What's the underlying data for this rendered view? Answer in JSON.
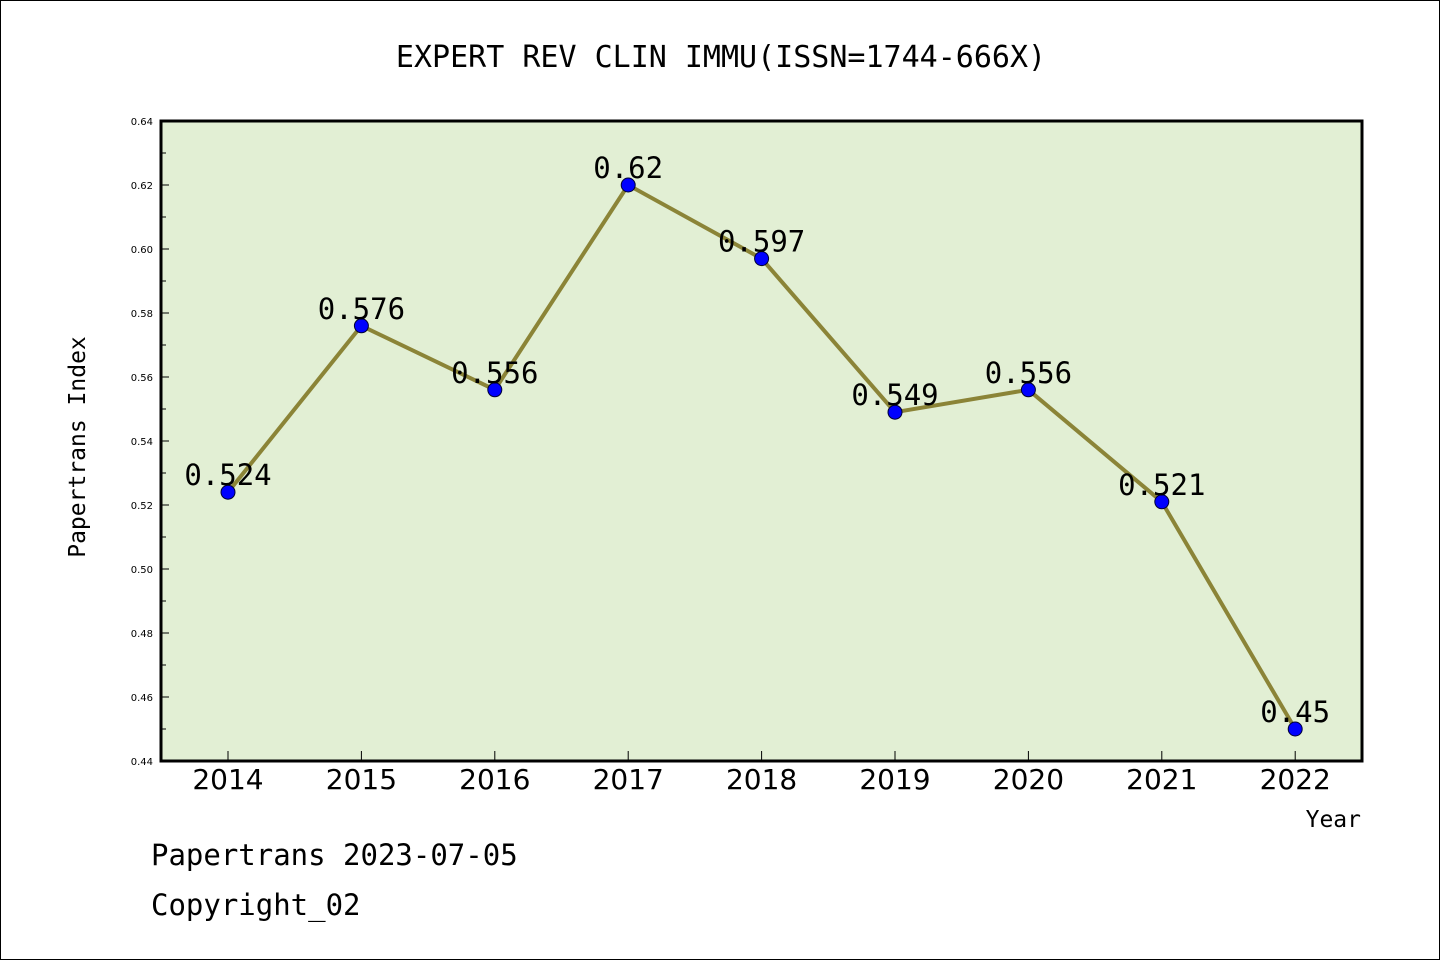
{
  "chart_data": {
    "type": "line",
    "title": "EXPERT REV CLIN IMMU(ISSN=1744-666X)",
    "xlabel": "Year",
    "ylabel": "Papertrans Index",
    "categories": [
      "2014",
      "2015",
      "2016",
      "2017",
      "2018",
      "2019",
      "2020",
      "2021",
      "2022"
    ],
    "series": [
      {
        "values": [
          0.524,
          0.576,
          0.556,
          0.62,
          0.597,
          0.549,
          0.556,
          0.521,
          0.45
        ],
        "labels": [
          "0.524",
          "0.576",
          "0.556",
          "0.62",
          "0.597",
          "0.549",
          "0.556",
          "0.521",
          "0.45"
        ]
      }
    ],
    "ylim": [
      0.44,
      0.64
    ],
    "yticks": [
      "0.44",
      "0.46",
      "0.48",
      "0.50",
      "0.52",
      "0.54",
      "0.56",
      "0.58",
      "0.60",
      "0.62",
      "0.64"
    ],
    "grid": false,
    "legend": "none"
  },
  "footer": {
    "date_line": "Papertrans 2023-07-05",
    "copyright_line": "Copyright_02"
  },
  "colors": {
    "plot_background": "#e2efd4",
    "line": "#8b8437",
    "marker": "#0000ff"
  }
}
